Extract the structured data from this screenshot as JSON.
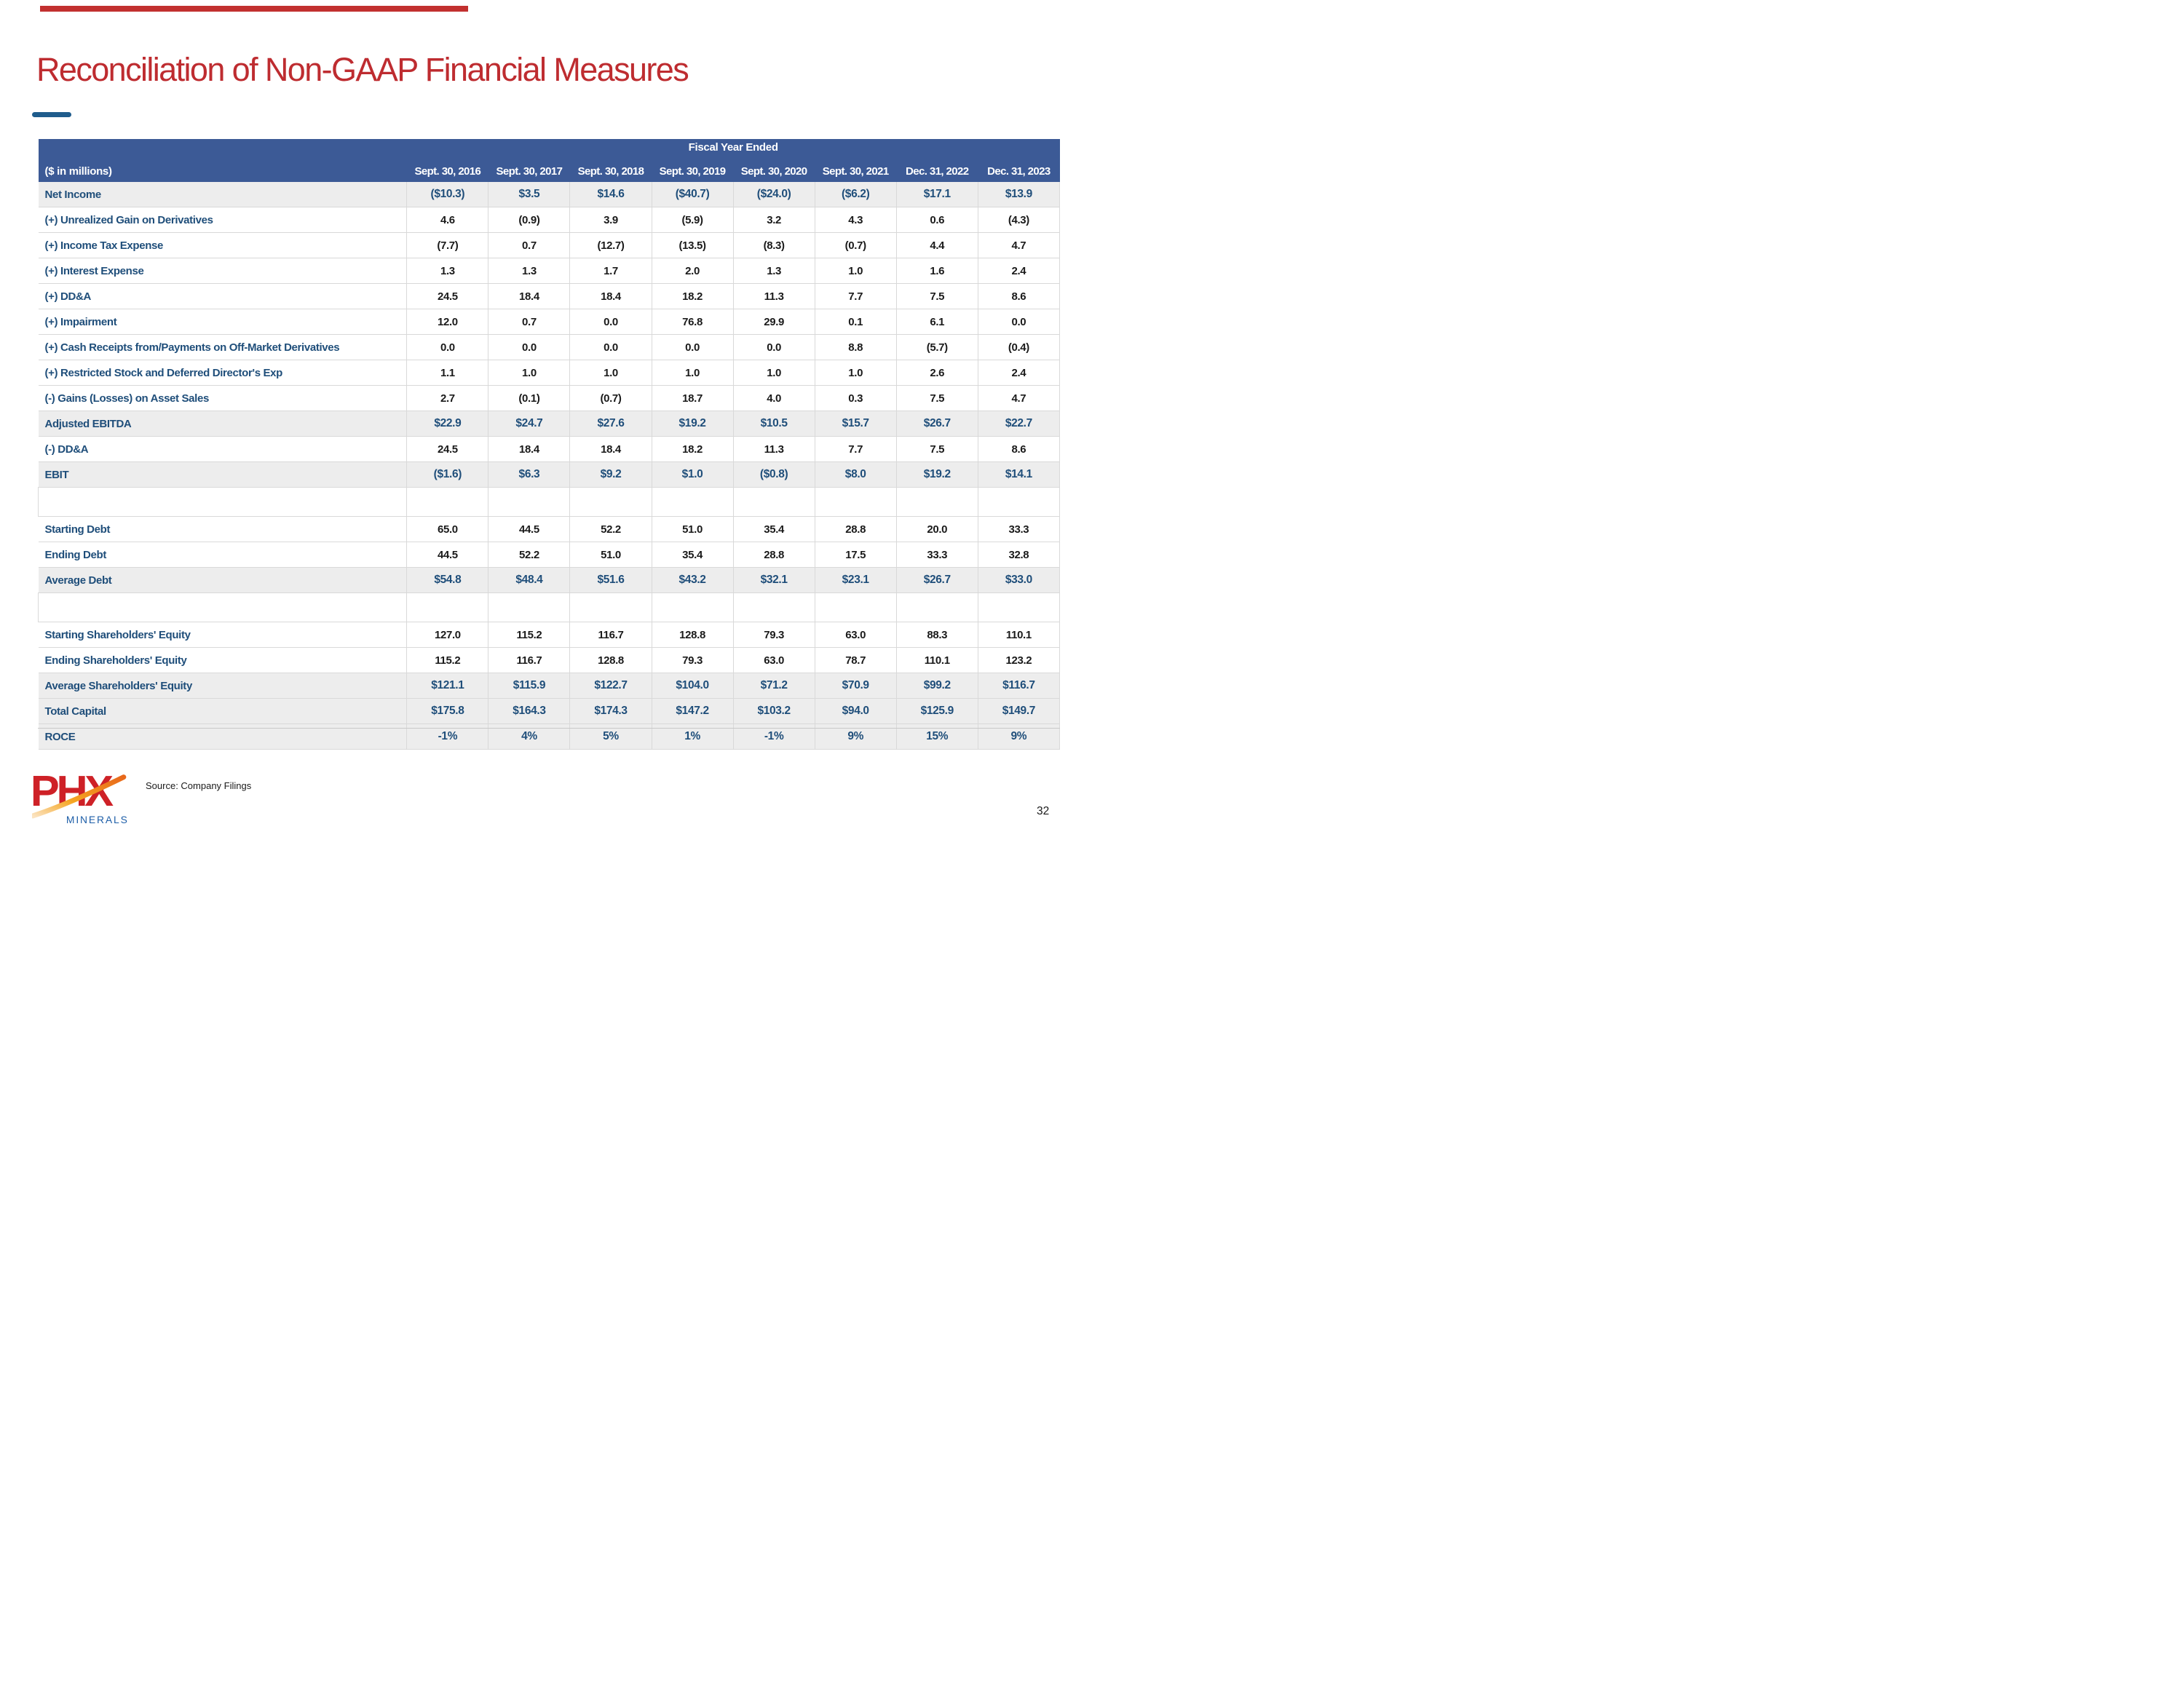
{
  "title": "Reconciliation of Non-GAAP Financial Measures",
  "table": {
    "group_header": "Fiscal Year Ended",
    "unit_label": "($ in millions)",
    "columns": [
      "Sept. 30, 2016",
      "Sept. 30, 2017",
      "Sept. 30, 2018",
      "Sept. 30, 2019",
      "Sept. 30, 2020",
      "Sept. 30, 2021",
      "Dec. 31, 2022",
      "Dec. 31, 2023"
    ],
    "rows": [
      {
        "label": "Net Income",
        "style": "total",
        "values": [
          "($10.3)",
          "$3.5",
          "$14.6",
          "($40.7)",
          "($24.0)",
          "($6.2)",
          "$17.1",
          "$13.9"
        ]
      },
      {
        "label": "(+) Unrealized Gain on Derivatives",
        "style": "normal",
        "values": [
          "4.6",
          "(0.9)",
          "3.9",
          "(5.9)",
          "3.2",
          "4.3",
          "0.6",
          "(4.3)"
        ]
      },
      {
        "label": "(+) Income Tax Expense",
        "style": "normal",
        "values": [
          "(7.7)",
          "0.7",
          "(12.7)",
          "(13.5)",
          "(8.3)",
          "(0.7)",
          "4.4",
          "4.7"
        ]
      },
      {
        "label": "(+) Interest Expense",
        "style": "normal",
        "values": [
          "1.3",
          "1.3",
          "1.7",
          "2.0",
          "1.3",
          "1.0",
          "1.6",
          "2.4"
        ]
      },
      {
        "label": "(+) DD&A",
        "style": "normal",
        "values": [
          "24.5",
          "18.4",
          "18.4",
          "18.2",
          "11.3",
          "7.7",
          "7.5",
          "8.6"
        ]
      },
      {
        "label": "(+) Impairment",
        "style": "normal",
        "values": [
          "12.0",
          "0.7",
          "0.0",
          "76.8",
          "29.9",
          "0.1",
          "6.1",
          "0.0"
        ]
      },
      {
        "label": "(+) Cash Receipts from/Payments on Off-Market Derivatives",
        "style": "normal",
        "values": [
          "0.0",
          "0.0",
          "0.0",
          "0.0",
          "0.0",
          "8.8",
          "(5.7)",
          "(0.4)"
        ]
      },
      {
        "label": "(+) Restricted Stock and Deferred Director's Exp",
        "style": "normal",
        "values": [
          "1.1",
          "1.0",
          "1.0",
          "1.0",
          "1.0",
          "1.0",
          "2.6",
          "2.4"
        ]
      },
      {
        "label": "(-) Gains (Losses) on Asset Sales",
        "style": "normal",
        "values": [
          "2.7",
          "(0.1)",
          "(0.7)",
          "18.7",
          "4.0",
          "0.3",
          "7.5",
          "4.7"
        ]
      },
      {
        "label": "Adjusted EBITDA",
        "style": "total",
        "values": [
          "$22.9",
          "$24.7",
          "$27.6",
          "$19.2",
          "$10.5",
          "$15.7",
          "$26.7",
          "$22.7"
        ]
      },
      {
        "label": "(-) DD&A",
        "style": "normal",
        "values": [
          "24.5",
          "18.4",
          "18.4",
          "18.2",
          "11.3",
          "7.7",
          "7.5",
          "8.6"
        ]
      },
      {
        "label": "EBIT",
        "style": "total",
        "values": [
          "($1.6)",
          "$6.3",
          "$9.2",
          "$1.0",
          "($0.8)",
          "$8.0",
          "$19.2",
          "$14.1"
        ]
      },
      {
        "label": "",
        "style": "spacer",
        "values": [
          "",
          "",
          "",
          "",
          "",
          "",
          "",
          ""
        ]
      },
      {
        "label": "Starting Debt",
        "style": "normal",
        "values": [
          "65.0",
          "44.5",
          "52.2",
          "51.0",
          "35.4",
          "28.8",
          "20.0",
          "33.3"
        ]
      },
      {
        "label": "Ending Debt",
        "style": "normal",
        "values": [
          "44.5",
          "52.2",
          "51.0",
          "35.4",
          "28.8",
          "17.5",
          "33.3",
          "32.8"
        ]
      },
      {
        "label": "Average Debt",
        "style": "total",
        "values": [
          "$54.8",
          "$48.4",
          "$51.6",
          "$43.2",
          "$32.1",
          "$23.1",
          "$26.7",
          "$33.0"
        ]
      },
      {
        "label": "",
        "style": "spacer",
        "values": [
          "",
          "",
          "",
          "",
          "",
          "",
          "",
          ""
        ]
      },
      {
        "label": "Starting Shareholders' Equity",
        "style": "normal",
        "values": [
          "127.0",
          "115.2",
          "116.7",
          "128.8",
          "79.3",
          "63.0",
          "88.3",
          "110.1"
        ]
      },
      {
        "label": "Ending Shareholders' Equity",
        "style": "normal",
        "values": [
          "115.2",
          "116.7",
          "128.8",
          "79.3",
          "63.0",
          "78.7",
          "110.1",
          "123.2"
        ]
      },
      {
        "label": "Average Shareholders' Equity",
        "style": "total",
        "values": [
          "$121.1",
          "$115.9",
          "$122.7",
          "$104.0",
          "$71.2",
          "$70.9",
          "$99.2",
          "$116.7"
        ]
      },
      {
        "label": "Total Capital",
        "style": "total",
        "values": [
          "$175.8",
          "$164.3",
          "$174.3",
          "$147.2",
          "$103.2",
          "$94.0",
          "$125.9",
          "$149.7"
        ]
      },
      {
        "label": "ROCE",
        "style": "total",
        "values": [
          "-1%",
          "4%",
          "5%",
          "1%",
          "-1%",
          "9%",
          "15%",
          "9%"
        ]
      }
    ]
  },
  "footer": {
    "source": "Source: Company Filings",
    "page_number": "32"
  },
  "logo": {
    "text": "PHX",
    "subtext": "MINERALS"
  },
  "colors": {
    "header_blue": "#3C5A96",
    "label_blue": "#1F4E7A",
    "title_red": "#BE2C30",
    "accent_red": "#C2302F",
    "total_row_gray": "#EDEDED",
    "logo_red": "#CE2127",
    "logo_orange": "#F5A623",
    "logo_blue": "#1D5EA8"
  }
}
